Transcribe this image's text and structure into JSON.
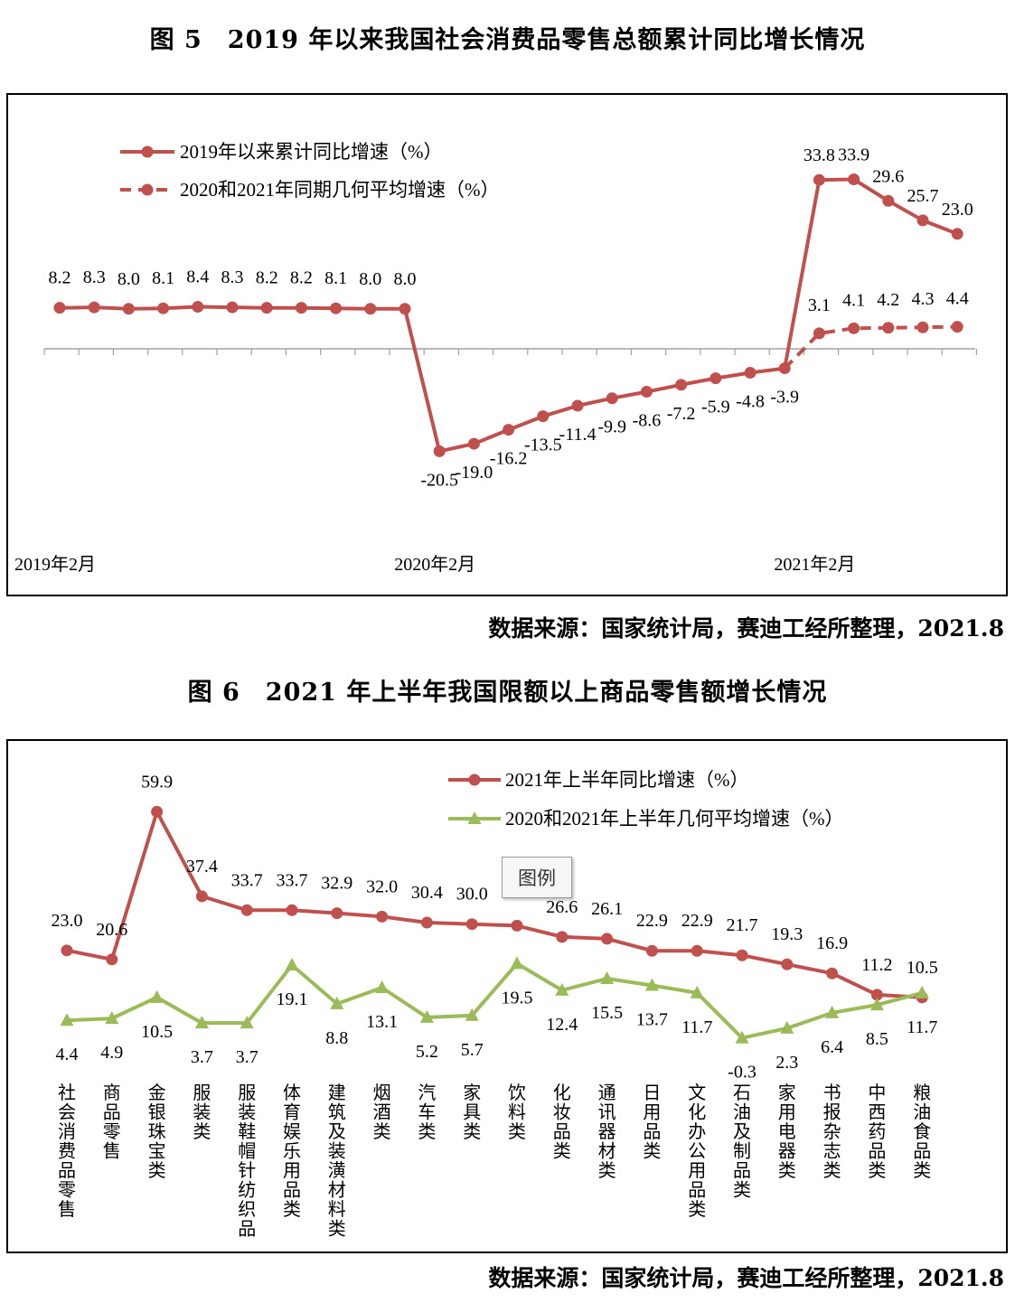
{
  "figure5": {
    "title": "图 5　2019 年以来我国社会消费品零售总额累计同比增长情况",
    "source": "数据来源：国家统计局，赛迪工经所整理，2021.8",
    "chart_data": {
      "type": "line",
      "title": "图 5　2019 年以来我国社会消费品零售总额累计同比增长情况",
      "xlabel": "",
      "ylabel": "",
      "x_tick_labels": [
        "2019年2月",
        "2020年2月",
        "2021年2月"
      ],
      "x_tick_positions": [
        0,
        11,
        22
      ],
      "ylim": [
        -26,
        40
      ],
      "grid": false,
      "legend_position": "top-left",
      "colors": {
        "series1": "#c0504d",
        "series2": "#c0504d",
        "axis": "#a0a0a0"
      },
      "series": [
        {
          "name": "2019年以来累计同比增速（%）",
          "style": "solid",
          "start_index": 0,
          "values": [
            8.2,
            8.3,
            8.0,
            8.1,
            8.4,
            8.3,
            8.2,
            8.2,
            8.1,
            8.0,
            8.0,
            -20.5,
            -19.0,
            -16.2,
            -13.5,
            -11.4,
            -9.9,
            -8.6,
            -7.2,
            -5.9,
            -4.8,
            -3.9,
            33.8,
            33.9,
            29.6,
            25.7,
            23.0
          ],
          "labels": [
            "8.2",
            "8.3",
            "8.0",
            "8.1",
            "8.4",
            "8.3",
            "8.2",
            "8.2",
            "8.1",
            "8.0",
            "8.0",
            "-20.5",
            "-19.0",
            "-16.2",
            "-13.5",
            "-11.4",
            "-9.9",
            "-8.6",
            "-7.2",
            "-5.9",
            "-4.8",
            "-3.9",
            "33.8",
            "33.9",
            "29.6",
            "25.7",
            "23.0"
          ]
        },
        {
          "name": "2020和2021年同期几何平均增速（%）",
          "style": "dashed",
          "start_index": 21,
          "values": [
            -3.9,
            3.1,
            4.1,
            4.2,
            4.3,
            4.4
          ],
          "labels": [
            "",
            "3.1",
            "4.1",
            "4.2",
            "4.3",
            "4.4"
          ]
        }
      ]
    }
  },
  "figure6": {
    "title": "图 6　2021 年上半年我国限额以上商品零售额增长情况",
    "source": "数据来源：国家统计局，赛迪工经所整理，2021.8",
    "tooltip": "图例",
    "chart_data": {
      "type": "line",
      "title": "图 6　2021 年上半年我国限额以上商品零售额增长情况",
      "xlabel": "",
      "ylabel": "",
      "categories": [
        "社会消费品零售",
        "商品零售",
        "金银珠宝类",
        "服装类",
        "服装鞋帽针纺织品",
        "体育娱乐用品类",
        "建筑及装潢材料类",
        "烟酒类",
        "汽车类",
        "家具类",
        "饮料类",
        "化妆品类",
        "通讯器材类",
        "日用品类",
        "文化办公用品类",
        "石油及制品类",
        "家用电器类",
        "书报杂志类",
        "中西药品类",
        "粮油食品类"
      ],
      "ylim": [
        -5,
        65
      ],
      "grid": false,
      "legend_position": "top-right",
      "colors": {
        "series1": "#c0504d",
        "series2": "#9bbb59"
      },
      "series": [
        {
          "name": "2021年上半年同比增速（%）",
          "marker": "circle",
          "values": [
            23.0,
            20.6,
            59.9,
            37.4,
            33.7,
            33.7,
            32.9,
            32.0,
            30.4,
            30.0,
            29.6,
            26.6,
            26.1,
            22.9,
            22.9,
            21.7,
            19.3,
            16.9,
            11.2,
            10.5
          ],
          "labels": [
            "23.0",
            "20.6",
            "59.9",
            "37.4",
            "33.7",
            "33.7",
            "32.9",
            "32.0",
            "30.4",
            "30.0",
            "",
            "26.6",
            "26.1",
            "22.9",
            "22.9",
            "21.7",
            "19.3",
            "16.9",
            "11.2",
            "10.5"
          ]
        },
        {
          "name": "2020和2021年上半年几何平均增速（%）",
          "marker": "triangle",
          "values": [
            4.4,
            4.9,
            10.5,
            3.7,
            3.7,
            19.1,
            8.8,
            13.1,
            5.2,
            5.7,
            19.5,
            12.4,
            15.5,
            13.7,
            11.7,
            -0.3,
            2.3,
            6.4,
            8.5,
            11.7
          ],
          "labels": [
            "4.4",
            "4.9",
            "10.5",
            "3.7",
            "3.7",
            "19.1",
            "8.8",
            "13.1",
            "5.2",
            "5.7",
            "19.5",
            "12.4",
            "15.5",
            "13.7",
            "11.7",
            "-0.3",
            "2.3",
            "6.4",
            "8.5",
            "11.7"
          ]
        }
      ]
    }
  }
}
